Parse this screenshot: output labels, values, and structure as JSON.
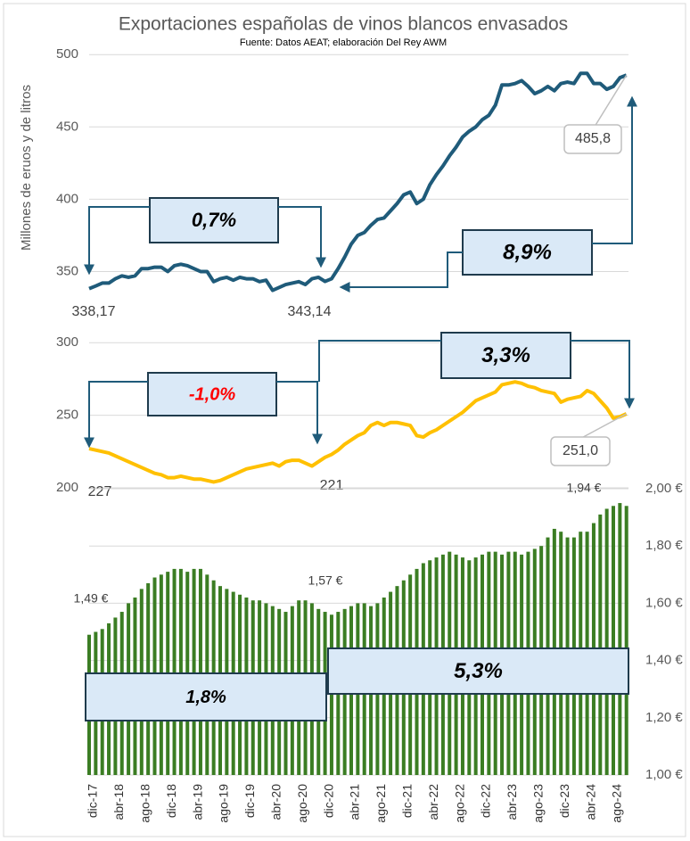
{
  "chart_data": [
    {
      "type": "line",
      "title": "Exportaciones españolas de vinos blancos envasados",
      "subtitle": "Fuente: Datos AEAT; elaboración Del Rey AWM",
      "y_label": "Millones de eruos y de litros",
      "color": "#1f5b7a",
      "grid": true,
      "ylim": [
        325,
        510
      ],
      "yticks": [
        350,
        400,
        450,
        500
      ],
      "values": [
        338.17,
        340,
        342,
        342,
        345,
        347,
        346,
        347,
        352,
        352,
        353,
        353,
        350,
        354,
        355,
        354,
        352,
        350,
        350,
        343,
        345,
        346,
        344,
        346,
        345,
        345,
        343,
        344,
        337,
        339,
        341,
        342,
        343,
        341,
        345,
        346,
        343.14,
        345,
        352,
        360,
        369,
        375,
        377,
        382,
        386,
        387,
        392,
        397,
        403,
        405,
        397,
        400,
        410,
        417,
        423,
        430,
        436,
        443,
        447,
        450,
        455,
        458,
        465,
        479,
        479,
        480,
        482,
        478,
        473,
        475,
        478,
        475,
        480,
        481,
        480,
        487,
        487,
        480,
        480,
        476,
        478,
        484,
        485.8
      ],
      "value_labels": [
        "338,17",
        null,
        null,
        null,
        null,
        null,
        null,
        null,
        null,
        null,
        null,
        null,
        null,
        null,
        null,
        null,
        null,
        null,
        null,
        null,
        null,
        null,
        null,
        null,
        null,
        null,
        null,
        null,
        null,
        null,
        null,
        null,
        null,
        null,
        null,
        null,
        "343,14",
        null,
        null,
        null,
        null,
        null,
        null,
        null,
        null,
        null,
        null,
        null,
        null,
        null,
        null,
        null,
        null,
        null,
        null,
        null,
        null,
        null,
        null,
        null,
        null,
        null,
        null,
        null,
        null,
        null,
        null,
        null,
        null,
        null,
        null,
        null,
        null,
        null,
        null,
        null,
        null,
        null,
        null,
        null,
        null,
        null,
        "485,8"
      ],
      "annotations": [
        "0,7%",
        "8,9%"
      ]
    },
    {
      "type": "line",
      "color": "#ffc000",
      "grid": true,
      "ylim": [
        192,
        310
      ],
      "yticks": [
        200,
        250,
        300
      ],
      "values": [
        227,
        226,
        225,
        224,
        222,
        220,
        218,
        216,
        214,
        212,
        210,
        209,
        207,
        207,
        208,
        207,
        206,
        206,
        205,
        204,
        205,
        207,
        209,
        211,
        213,
        214,
        215,
        216,
        217,
        215,
        218,
        219,
        219,
        217,
        215,
        218,
        221,
        223,
        226,
        230,
        233,
        236,
        238,
        243,
        245,
        243,
        245,
        245,
        244,
        243,
        236,
        235,
        238,
        240,
        243,
        246,
        249,
        252,
        256,
        260,
        262,
        264,
        266,
        271,
        272,
        273,
        272,
        270,
        269,
        267,
        266,
        265,
        259,
        261,
        262,
        263,
        267,
        265,
        260,
        255,
        248,
        249,
        251
      ],
      "value_labels": [
        "227",
        null,
        null,
        null,
        null,
        null,
        null,
        null,
        null,
        null,
        null,
        null,
        null,
        null,
        null,
        null,
        null,
        null,
        null,
        null,
        null,
        null,
        null,
        null,
        null,
        null,
        null,
        null,
        null,
        null,
        null,
        null,
        null,
        null,
        null,
        null,
        "221",
        null,
        null,
        null,
        null,
        null,
        null,
        null,
        null,
        null,
        null,
        null,
        null,
        null,
        null,
        null,
        null,
        null,
        null,
        null,
        null,
        null,
        null,
        null,
        null,
        null,
        null,
        null,
        null,
        null,
        null,
        null,
        null,
        null,
        null,
        null,
        null,
        null,
        null,
        null,
        null,
        null,
        null,
        null,
        null,
        null,
        "251,0"
      ],
      "annotations": [
        "-1,0%",
        "3,3%"
      ]
    },
    {
      "type": "bar",
      "color": "#3b7d23",
      "grid": true,
      "ylim": [
        1,
        2.025
      ],
      "yticks": [
        {
          "value": 1,
          "label": "1,00 €"
        },
        {
          "value": 1.2,
          "label": "1,20 €"
        },
        {
          "value": 1.4,
          "label": "1,40 €"
        },
        {
          "value": 1.6,
          "label": "1,60 €"
        },
        {
          "value": 1.8,
          "label": "1,80 €"
        },
        {
          "value": 2,
          "label": "2,00 €"
        }
      ],
      "categories": [
        "dic-17",
        null,
        null,
        null,
        "abr-18",
        null,
        null,
        null,
        "ago-18",
        null,
        null,
        null,
        "dic-18",
        null,
        null,
        null,
        "abr-19",
        null,
        null,
        null,
        "ago-19",
        null,
        null,
        null,
        "dic-19",
        null,
        null,
        null,
        "abr-20",
        null,
        null,
        null,
        "ago-20",
        null,
        null,
        null,
        "dic-20",
        null,
        null,
        null,
        "abr-21",
        null,
        null,
        null,
        "ago-21",
        null,
        null,
        null,
        "dic-21",
        null,
        null,
        null,
        "abr-22",
        null,
        null,
        null,
        "ago-22",
        null,
        null,
        null,
        "dic-22",
        null,
        null,
        null,
        "abr-23",
        null,
        null,
        null,
        "ago-23",
        null,
        null,
        null,
        "dic-23",
        null,
        null,
        null,
        "abr-24",
        null,
        null,
        null,
        "ago-24",
        null,
        null
      ],
      "values": [
        1.49,
        1.5,
        1.51,
        1.53,
        1.55,
        1.57,
        1.6,
        1.62,
        1.65,
        1.67,
        1.69,
        1.7,
        1.71,
        1.72,
        1.72,
        1.71,
        1.72,
        1.72,
        1.7,
        1.68,
        1.66,
        1.65,
        1.64,
        1.63,
        1.62,
        1.61,
        1.61,
        1.6,
        1.59,
        1.58,
        1.57,
        1.59,
        1.61,
        1.61,
        1.6,
        1.58,
        1.57,
        1.56,
        1.57,
        1.58,
        1.59,
        1.6,
        1.6,
        1.59,
        1.6,
        1.62,
        1.64,
        1.66,
        1.68,
        1.7,
        1.72,
        1.74,
        1.75,
        1.76,
        1.77,
        1.78,
        1.77,
        1.76,
        1.75,
        1.76,
        1.77,
        1.78,
        1.78,
        1.77,
        1.78,
        1.78,
        1.77,
        1.78,
        1.79,
        1.8,
        1.83,
        1.86,
        1.85,
        1.83,
        1.83,
        1.85,
        1.85,
        1.88,
        1.91,
        1.93,
        1.94,
        1.95,
        1.94
      ],
      "value_labels": [
        "1,49 €",
        null,
        null,
        null,
        null,
        null,
        null,
        null,
        null,
        null,
        null,
        null,
        null,
        null,
        null,
        null,
        null,
        null,
        null,
        null,
        null,
        null,
        null,
        null,
        null,
        null,
        null,
        null,
        null,
        null,
        null,
        null,
        null,
        null,
        null,
        null,
        "1,57 €",
        null,
        null,
        null,
        null,
        null,
        null,
        null,
        null,
        null,
        null,
        null,
        null,
        null,
        null,
        null,
        null,
        null,
        null,
        null,
        null,
        null,
        null,
        null,
        null,
        null,
        null,
        null,
        null,
        null,
        null,
        null,
        null,
        null,
        null,
        null,
        null,
        null,
        null,
        null,
        null,
        null,
        null,
        null,
        null,
        null,
        "1,94 €"
      ],
      "annotations": [
        "1,8%",
        "5,3%"
      ]
    }
  ]
}
